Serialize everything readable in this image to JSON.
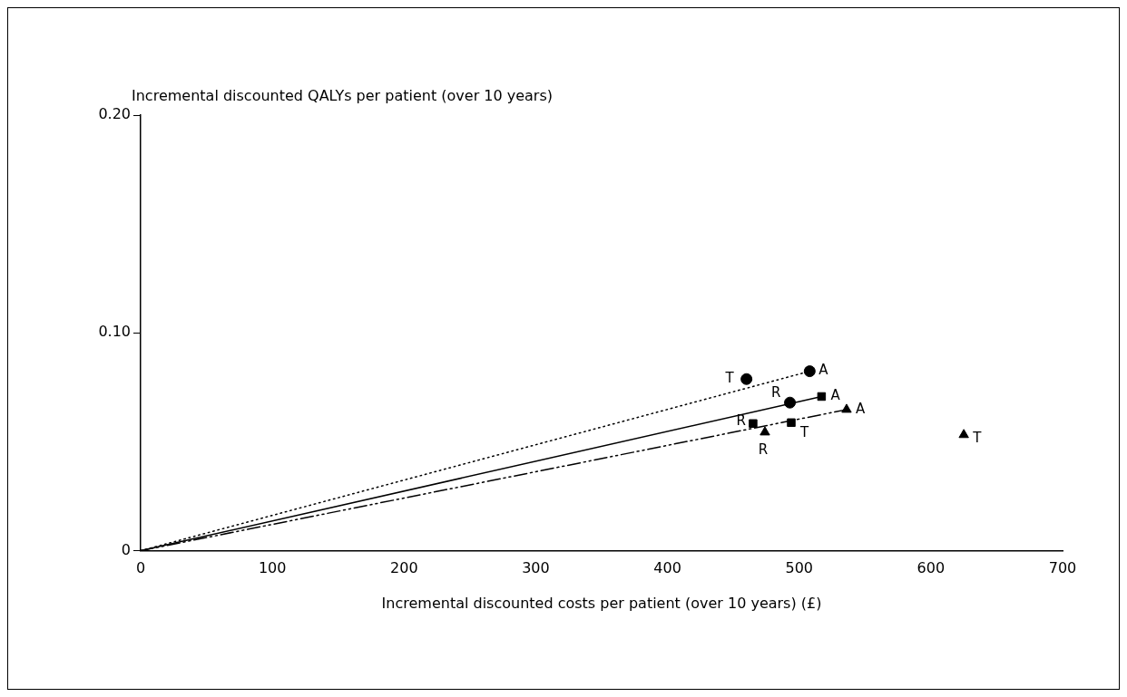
{
  "chart_data": {
    "type": "scatter",
    "xlabel": "Incremental discounted costs per patient (over 10 years) (£)",
    "ylabel": "Incremental discounted QALYs per patient (over 10 years)",
    "xlim": [
      0,
      700
    ],
    "xticks": [
      0,
      100,
      200,
      300,
      400,
      500,
      600,
      700
    ],
    "ylim": [
      0,
      0.2
    ],
    "yticks": [
      0,
      {
        "value": 0.1,
        "label": "0.10"
      },
      {
        "value": 0.2,
        "label": "0.20"
      }
    ],
    "grid": false,
    "legend": false,
    "series": [
      {
        "type": "line",
        "color": "#000000",
        "line_style": "dotted",
        "marker": "none",
        "x": [
          0,
          508
        ],
        "values": [
          0,
          0.0824
        ]
      },
      {
        "type": "line",
        "color": "#000000",
        "line_style": "solid",
        "marker": "none",
        "x": [
          0,
          517
        ],
        "values": [
          0,
          0.0708
        ]
      },
      {
        "type": "line",
        "color": "#000000",
        "line_style": "dashed",
        "marker": "none",
        "x": [
          0,
          536
        ],
        "values": [
          0,
          0.0648
        ]
      },
      {
        "type": "scatter",
        "color": "#000000",
        "marker": "circle",
        "x": [
          460,
          493,
          508
        ],
        "values": [
          0.0788,
          0.068,
          0.0824
        ],
        "value_labels": [
          "T",
          "R",
          "A"
        ]
      },
      {
        "type": "scatter",
        "color": "#000000",
        "marker": "square",
        "x": [
          494,
          465,
          517
        ],
        "values": [
          0.0588,
          0.0584,
          0.0708
        ],
        "value_labels": [
          "T",
          "R",
          "A"
        ]
      },
      {
        "type": "scatter",
        "color": "#000000",
        "marker": "triangle",
        "x": [
          625,
          474,
          536
        ],
        "values": [
          0.0532,
          0.0544,
          0.0648
        ],
        "value_labels": [
          "T",
          "R",
          "A"
        ]
      }
    ]
  }
}
